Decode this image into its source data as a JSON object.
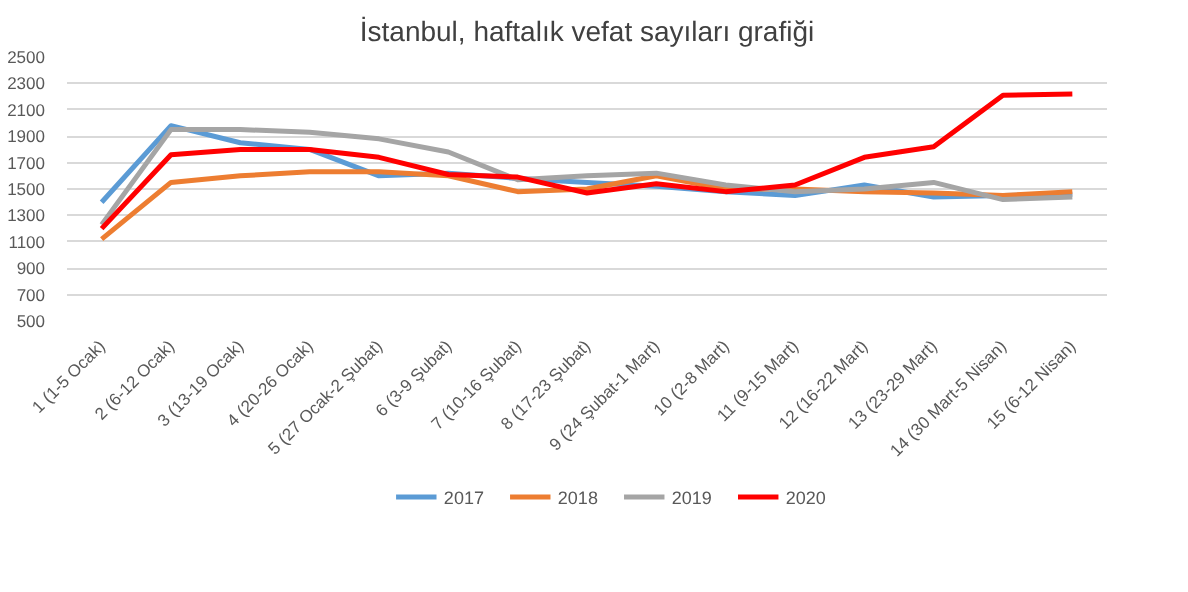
{
  "chart_data": {
    "type": "line",
    "title": "İstanbul, haftalık vefat sayıları grafiği",
    "categories": [
      "1 (1-5 Ocak)",
      "2 (6-12 Ocak)",
      "3 (13-19 Ocak)",
      "4 (20-26 Ocak)",
      "5 (27 Ocak-2 Şubat)",
      "6 (3-9 Şubat)",
      "7 (10-16 Şubat)",
      "8 (17-23 Şubat)",
      "9 (24 Şubat-1 Mart)",
      "10 (2-8 Mart)",
      "11 (9-15 Mart)",
      "12 (16-22 Mart)",
      "13 (23-29 Mart)",
      "14 (30 Mart-5 Nisan)",
      "15 (6-12 Nisan)"
    ],
    "series": [
      {
        "name": "2017",
        "color": "#5b9bd5",
        "values": [
          1400,
          1980,
          1850,
          1800,
          1600,
          1620,
          1580,
          1550,
          1520,
          1480,
          1450,
          1530,
          1440,
          1450,
          1460
        ]
      },
      {
        "name": "2018",
        "color": "#ed7d31",
        "values": [
          1120,
          1550,
          1600,
          1630,
          1630,
          1600,
          1480,
          1500,
          1600,
          1500,
          1500,
          1480,
          1470,
          1450,
          1480
        ]
      },
      {
        "name": "2019",
        "color": "#a5a5a5",
        "values": [
          1230,
          1950,
          1950,
          1930,
          1880,
          1780,
          1570,
          1600,
          1620,
          1530,
          1480,
          1500,
          1550,
          1420,
          1440
        ]
      },
      {
        "name": "2020",
        "color": "#ff0000",
        "values": [
          1200,
          1760,
          1800,
          1800,
          1740,
          1610,
          1590,
          1470,
          1540,
          1480,
          1530,
          1740,
          1820,
          2210,
          2220
        ]
      }
    ],
    "ylim": [
      500,
      2500
    ],
    "yticks": [
      500,
      700,
      900,
      1100,
      1300,
      1500,
      1700,
      1900,
      2100,
      2300,
      2500
    ],
    "grid": "y",
    "legend": "bottom",
    "marker": "none",
    "line_style": "solid"
  }
}
